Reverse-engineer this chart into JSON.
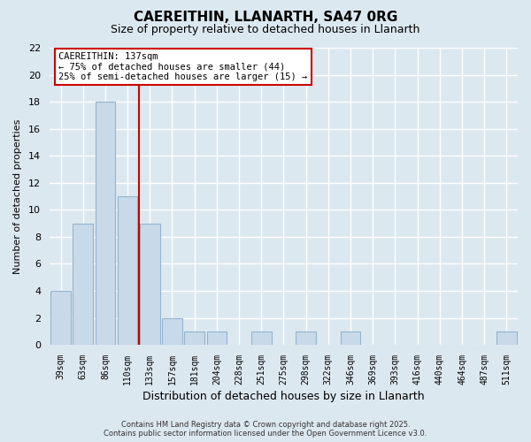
{
  "title": "CAEREITHIN, LLANARTH, SA47 0RG",
  "subtitle": "Size of property relative to detached houses in Llanarth",
  "xlabel": "Distribution of detached houses by size in Llanarth",
  "ylabel": "Number of detached properties",
  "bin_labels": [
    "39sqm",
    "63sqm",
    "86sqm",
    "110sqm",
    "133sqm",
    "157sqm",
    "181sqm",
    "204sqm",
    "228sqm",
    "251sqm",
    "275sqm",
    "298sqm",
    "322sqm",
    "346sqm",
    "369sqm",
    "393sqm",
    "416sqm",
    "440sqm",
    "464sqm",
    "487sqm",
    "511sqm"
  ],
  "bar_values": [
    4,
    9,
    18,
    11,
    9,
    2,
    1,
    1,
    0,
    1,
    0,
    1,
    0,
    1,
    0,
    0,
    0,
    0,
    0,
    0,
    1
  ],
  "bar_color": "#c8daea",
  "bar_edge_color": "#94b4cc",
  "vline_color": "#cc0000",
  "ylim": [
    0,
    22
  ],
  "yticks": [
    0,
    2,
    4,
    6,
    8,
    10,
    12,
    14,
    16,
    18,
    20,
    22
  ],
  "annotation_title": "CAEREITHIN: 137sqm",
  "annotation_line1": "← 75% of detached houses are smaller (44)",
  "annotation_line2": "25% of semi-detached houses are larger (15) →",
  "annotation_box_color": "#cc0000",
  "background_color": "#dce8f0",
  "grid_color": "#c8d8e4",
  "footer_line1": "Contains HM Land Registry data © Crown copyright and database right 2025.",
  "footer_line2": "Contains public sector information licensed under the Open Government Licence v3.0."
}
